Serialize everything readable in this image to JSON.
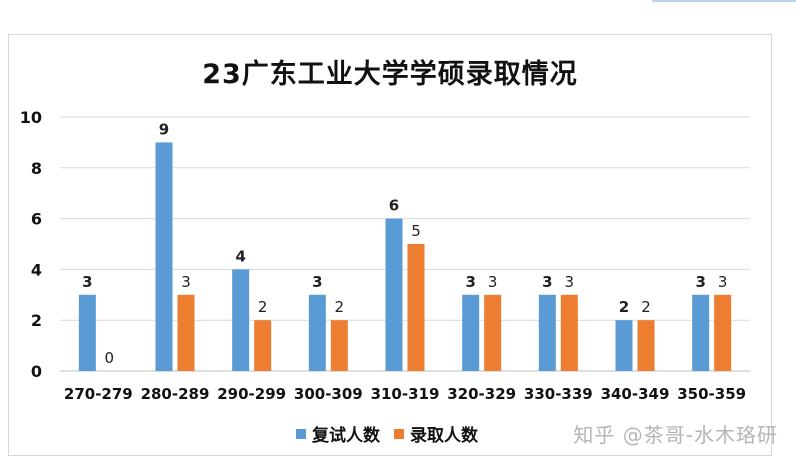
{
  "chart_data": {
    "type": "bar",
    "title": "23广东工业大学学硕录取情况",
    "categories": [
      "270-279",
      "280-289",
      "290-299",
      "300-309",
      "310-319",
      "320-329",
      "330-339",
      "340-349",
      "350-359"
    ],
    "series": [
      {
        "name": "复试人数",
        "color": "#5b9bd5",
        "values": [
          3,
          9,
          4,
          3,
          6,
          3,
          3,
          2,
          3
        ]
      },
      {
        "name": "录取人数",
        "color": "#ed7d31",
        "values": [
          0,
          3,
          2,
          2,
          5,
          3,
          3,
          2,
          3
        ]
      }
    ],
    "ylim": [
      0,
      10
    ],
    "yticks": [
      0,
      2,
      4,
      6,
      8,
      10
    ],
    "grid": true,
    "legend": "bottom"
  },
  "watermark": "知乎 @茶哥-水木珞研"
}
